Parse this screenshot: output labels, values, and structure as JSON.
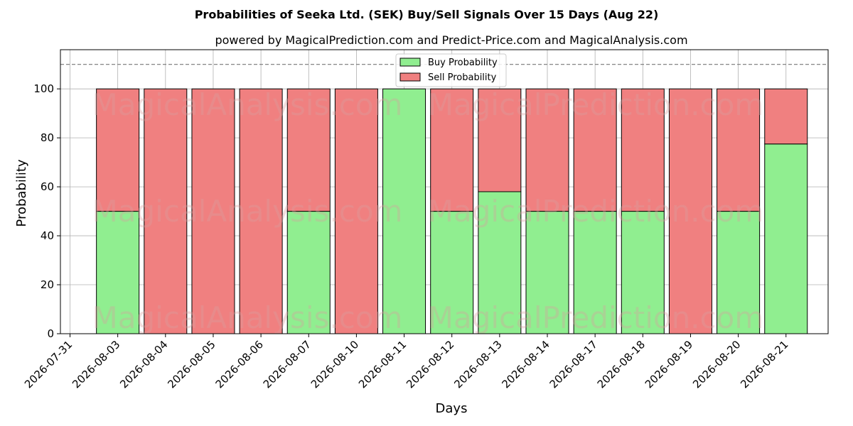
{
  "chart_data": {
    "type": "bar",
    "stacked": true,
    "title": "Probabilities of Seeka Ltd. (SEK) Buy/Sell Signals Over 15 Days (Aug 22)",
    "subtitle": "powered by MagicalPrediction.com and Predict-Price.com and MagicalAnalysis.com",
    "xlabel": "Days",
    "ylabel": "Probability",
    "ylim": [
      0,
      116
    ],
    "yticks": [
      0,
      20,
      40,
      60,
      80,
      100
    ],
    "reference_line": 110,
    "grid": true,
    "legend_position": "top-center",
    "x_tick_labels": [
      "2026-07-31",
      "2026-08-03",
      "2026-08-04",
      "2026-08-05",
      "2026-08-06",
      "2026-08-07",
      "2026-08-10",
      "2026-08-11",
      "2026-08-12",
      "2026-08-13",
      "2026-08-14",
      "2026-08-17",
      "2026-08-18",
      "2026-08-19",
      "2026-08-20",
      "2026-08-21"
    ],
    "categories": [
      "2026-08-03",
      "2026-08-04",
      "2026-08-05",
      "2026-08-06",
      "2026-08-07",
      "2026-08-10",
      "2026-08-11",
      "2026-08-12",
      "2026-08-13",
      "2026-08-14",
      "2026-08-17",
      "2026-08-18",
      "2026-08-19",
      "2026-08-20",
      "2026-08-21"
    ],
    "series": [
      {
        "name": "Buy Probability",
        "color": "#90ee90",
        "values": [
          50,
          0,
          0,
          0,
          50,
          0,
          100,
          50,
          58,
          50,
          50,
          50,
          0,
          50,
          77.5
        ]
      },
      {
        "name": "Sell Probability",
        "color": "#f08080",
        "values": [
          50,
          100,
          100,
          100,
          50,
          100,
          0,
          50,
          42,
          50,
          50,
          50,
          100,
          50,
          22.5
        ]
      }
    ],
    "watermarks": [
      "MagicalAnalysis.com",
      "MagicalPrediction.com"
    ]
  }
}
